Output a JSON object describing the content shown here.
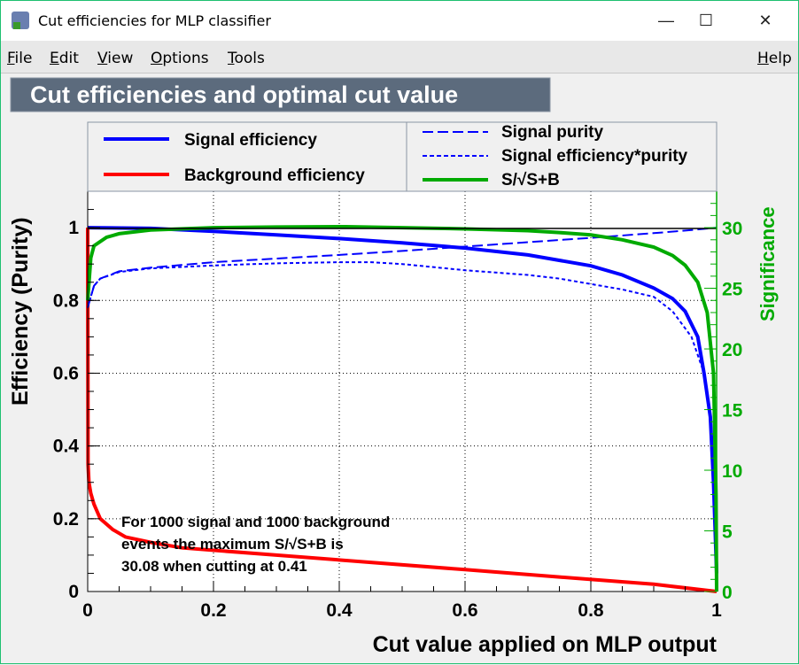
{
  "window": {
    "title": "Cut efficiencies for MLP classifier",
    "minimize": "—",
    "maximize": "☐",
    "close": "✕"
  },
  "menu": {
    "file": "File",
    "edit": "Edit",
    "view": "View",
    "options": "Options",
    "tools": "Tools",
    "help": "Help"
  },
  "chart_data": {
    "type": "line",
    "title": "Cut efficiencies and optimal cut value",
    "xlabel": "Cut value applied on MLP output",
    "ylabel": "Efficiency (Purity)",
    "y2label": "Significance",
    "xlim": [
      0,
      1
    ],
    "ylim": [
      0,
      1.1
    ],
    "y2lim": [
      0,
      33
    ],
    "grid": true,
    "xticks": [
      "0",
      "0.2",
      "0.4",
      "0.6",
      "0.8",
      "1"
    ],
    "yticks": [
      "0",
      "0.2",
      "0.4",
      "0.6",
      "0.8",
      "1"
    ],
    "y2ticks": [
      "0",
      "5",
      "10",
      "15",
      "20",
      "25",
      "30"
    ],
    "legend": {
      "placement": "top",
      "entries": [
        "Signal efficiency",
        "Background efficiency",
        "Signal purity",
        "Signal efficiency*purity",
        "S/√S+B"
      ]
    },
    "annotation": [
      "For 1000 signal and 1000 background",
      "events the maximum S/√S+B is",
      "30.08 when cutting at  0.41"
    ],
    "series": [
      {
        "name": "Signal efficiency",
        "color": "#0000ff",
        "style": "solid",
        "axis": "left",
        "x": [
          0,
          0.1,
          0.2,
          0.3,
          0.4,
          0.5,
          0.6,
          0.7,
          0.8,
          0.85,
          0.9,
          0.93,
          0.95,
          0.97,
          0.98,
          0.99,
          0.995,
          1.0
        ],
        "y": [
          1.0,
          0.998,
          0.99,
          0.98,
          0.97,
          0.958,
          0.944,
          0.925,
          0.895,
          0.87,
          0.834,
          0.805,
          0.77,
          0.7,
          0.6,
          0.48,
          0.3,
          0.05
        ]
      },
      {
        "name": "Background efficiency",
        "color": "#ff0000",
        "style": "solid",
        "axis": "left",
        "x": [
          0,
          0.0005,
          0.002,
          0.005,
          0.01,
          0.02,
          0.04,
          0.06,
          0.1,
          0.15,
          0.3,
          0.45,
          0.6,
          0.75,
          0.9,
          1.0
        ],
        "y": [
          1.0,
          0.35,
          0.3,
          0.27,
          0.24,
          0.2,
          0.17,
          0.15,
          0.135,
          0.12,
          0.1,
          0.08,
          0.06,
          0.04,
          0.02,
          0.0
        ]
      },
      {
        "name": "Signal purity",
        "color": "#0000ff",
        "style": "dashed",
        "axis": "left",
        "x": [
          0,
          0.01,
          0.02,
          0.05,
          0.1,
          0.2,
          0.3,
          0.4,
          0.5,
          0.6,
          0.7,
          0.8,
          0.9,
          0.95,
          1.0
        ],
        "y": [
          0.78,
          0.84,
          0.86,
          0.88,
          0.89,
          0.905,
          0.915,
          0.925,
          0.936,
          0.948,
          0.96,
          0.972,
          0.985,
          0.992,
          1.0
        ]
      },
      {
        "name": "Signal efficiency*purity",
        "color": "#0000ff",
        "style": "dotted",
        "axis": "left",
        "x": [
          0,
          0.01,
          0.02,
          0.05,
          0.1,
          0.2,
          0.3,
          0.4,
          0.45,
          0.5,
          0.6,
          0.7,
          0.75,
          0.85,
          0.9,
          0.93,
          0.96,
          0.98,
          0.99,
          0.995,
          1.0
        ],
        "y": [
          0.78,
          0.84,
          0.86,
          0.878,
          0.888,
          0.896,
          0.902,
          0.905,
          0.905,
          0.9,
          0.883,
          0.87,
          0.86,
          0.83,
          0.81,
          0.77,
          0.7,
          0.6,
          0.48,
          0.3,
          0.05
        ]
      },
      {
        "name": "S/√S+B",
        "color": "#00aa00",
        "style": "solid",
        "axis": "right",
        "x": [
          0,
          0.005,
          0.01,
          0.03,
          0.05,
          0.1,
          0.2,
          0.3,
          0.41,
          0.5,
          0.6,
          0.7,
          0.75,
          0.8,
          0.85,
          0.9,
          0.93,
          0.95,
          0.97,
          0.985,
          0.995,
          0.999,
          1.0
        ],
        "y": [
          24,
          27.5,
          28.5,
          29.2,
          29.5,
          29.8,
          30.0,
          30.05,
          30.08,
          30.0,
          29.9,
          29.75,
          29.6,
          29.4,
          29.0,
          28.4,
          27.7,
          26.9,
          25.5,
          23.0,
          18.0,
          8.0,
          0
        ]
      }
    ]
  }
}
